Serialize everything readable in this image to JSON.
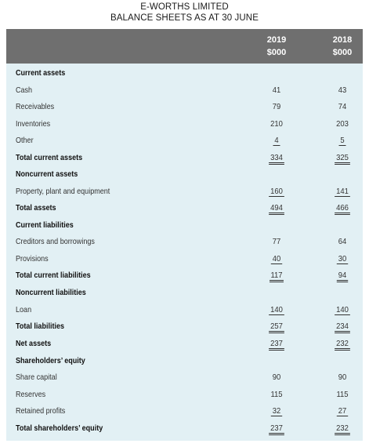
{
  "title_line1": "E-WORTHS LIMITED",
  "title_line2": "BALANCE SHEETS AS AT 30 JUNE",
  "header": {
    "col1_year": "2019",
    "col1_unit": "$000",
    "col2_year": "2018",
    "col2_unit": "$000"
  },
  "rows": [
    {
      "label": "Current assets",
      "bold": true,
      "v2019": "",
      "v2018": "",
      "u": ""
    },
    {
      "label": "Cash",
      "bold": false,
      "v2019": "41",
      "v2018": "43",
      "u": ""
    },
    {
      "label": "Receivables",
      "bold": false,
      "v2019": "79",
      "v2018": "74",
      "u": ""
    },
    {
      "label": "Inventories",
      "bold": false,
      "v2019": "210",
      "v2018": "203",
      "u": ""
    },
    {
      "label": "Other",
      "bold": false,
      "v2019": "4",
      "v2018": "5",
      "u": "single"
    },
    {
      "label": "Total current assets",
      "bold": true,
      "v2019": "334",
      "v2018": "325",
      "u": "double"
    },
    {
      "label": "Noncurrent assets",
      "bold": true,
      "v2019": "",
      "v2018": "",
      "u": ""
    },
    {
      "label": "Property, plant and equipment",
      "bold": false,
      "v2019": "160",
      "v2018": "141",
      "u": "single"
    },
    {
      "label": "Total assets",
      "bold": true,
      "v2019": "494",
      "v2018": "466",
      "u": "double"
    },
    {
      "label": "Current liabilities",
      "bold": true,
      "v2019": "",
      "v2018": "",
      "u": ""
    },
    {
      "label": "Creditors and borrowings",
      "bold": false,
      "v2019": "77",
      "v2018": "64",
      "u": ""
    },
    {
      "label": "Provisions",
      "bold": false,
      "v2019": "40",
      "v2018": "30",
      "u": "single"
    },
    {
      "label": "Total current liabilities",
      "bold": true,
      "v2019": "117",
      "v2018": "94",
      "u": "double"
    },
    {
      "label": "Noncurrent liabilities",
      "bold": true,
      "v2019": "",
      "v2018": "",
      "u": ""
    },
    {
      "label": "Loan",
      "bold": false,
      "v2019": "140",
      "v2018": "140",
      "u": "single"
    },
    {
      "label": "Total liabilities",
      "bold": true,
      "v2019": "257",
      "v2018": "234",
      "u": "double"
    },
    {
      "label": "Net assets",
      "bold": true,
      "v2019": "237",
      "v2018": "232",
      "u": "double"
    },
    {
      "label": "Shareholders’ equity",
      "bold": true,
      "v2019": "",
      "v2018": "",
      "u": ""
    },
    {
      "label": "Share capital",
      "bold": false,
      "v2019": "90",
      "v2018": "90",
      "u": ""
    },
    {
      "label": "Reserves",
      "bold": false,
      "v2019": "115",
      "v2018": "115",
      "u": ""
    },
    {
      "label": "Retained profits",
      "bold": false,
      "v2019": "32",
      "v2018": "27",
      "u": "single"
    },
    {
      "label": "Total shareholders’ equity",
      "bold": true,
      "v2019": "237",
      "v2018": "232",
      "u": "double"
    }
  ]
}
